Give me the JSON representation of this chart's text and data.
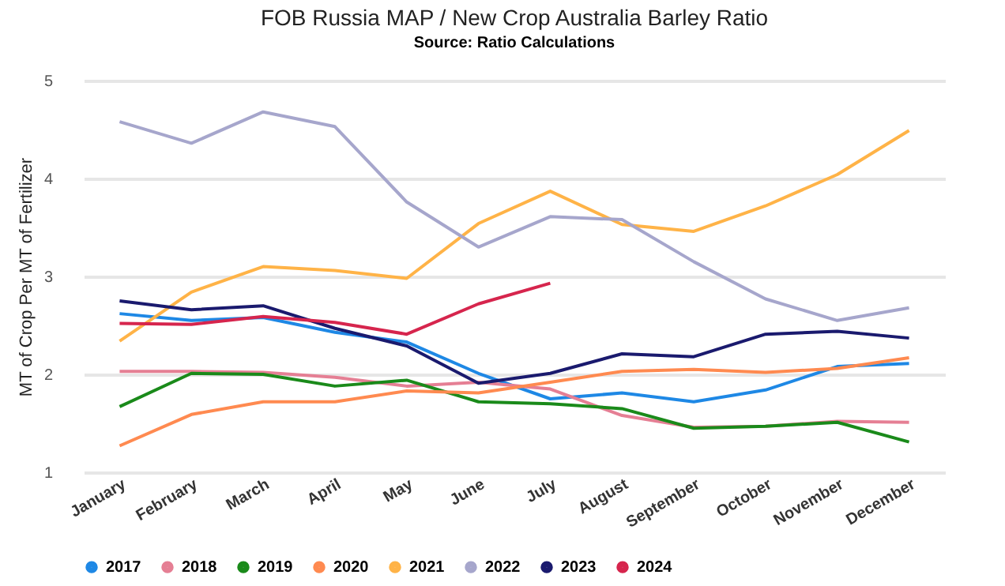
{
  "chart_data": {
    "type": "line",
    "title": "FOB Russia MAP / New Crop Australia Barley Ratio",
    "subtitle": "Source: Ratio Calculations",
    "ylabel": "MT of Crop Per MT of Fertilizer",
    "categories": [
      "January",
      "February",
      "March",
      "April",
      "May",
      "June",
      "July",
      "August",
      "September",
      "October",
      "November",
      "December"
    ],
    "ylim": [
      1,
      5
    ],
    "yticks": [
      1,
      2,
      3,
      4,
      5
    ],
    "grid": "y",
    "legend": "bottom",
    "marker": "none",
    "series": [
      {
        "name": "2017",
        "color": "#1e88e5",
        "values": [
          2.62,
          2.55,
          2.58,
          2.43,
          2.33,
          2.01,
          1.75,
          1.81,
          1.72,
          1.84,
          2.08,
          2.11
        ]
      },
      {
        "name": "2018",
        "color": "#e57f94",
        "values": [
          2.03,
          2.03,
          2.02,
          1.97,
          1.88,
          1.92,
          1.85,
          1.58,
          1.46,
          1.47,
          1.52,
          1.51
        ]
      },
      {
        "name": "2019",
        "color": "#1a8a1a",
        "values": [
          1.67,
          2.01,
          2.0,
          1.88,
          1.94,
          1.72,
          1.7,
          1.65,
          1.45,
          1.47,
          1.51,
          1.31
        ]
      },
      {
        "name": "2020",
        "color": "#ff8a50",
        "values": [
          1.27,
          1.59,
          1.72,
          1.72,
          1.83,
          1.81,
          1.92,
          2.03,
          2.05,
          2.02,
          2.06,
          2.17
        ]
      },
      {
        "name": "2021",
        "color": "#ffb347",
        "values": [
          2.34,
          2.84,
          3.1,
          3.06,
          2.98,
          3.54,
          3.87,
          3.53,
          3.46,
          3.72,
          4.04,
          4.49
        ]
      },
      {
        "name": "2022",
        "color": "#a6a6cc",
        "values": [
          4.58,
          4.36,
          4.68,
          4.53,
          3.76,
          3.3,
          3.61,
          3.58,
          3.15,
          2.77,
          2.55,
          2.68
        ]
      },
      {
        "name": "2023",
        "color": "#1a1a6e",
        "values": [
          2.75,
          2.66,
          2.7,
          2.47,
          2.29,
          1.91,
          2.01,
          2.21,
          2.18,
          2.41,
          2.44,
          2.37
        ]
      },
      {
        "name": "2024",
        "color": "#d6254d",
        "values": [
          2.52,
          2.51,
          2.59,
          2.53,
          2.41,
          2.72,
          2.93,
          null,
          null,
          null,
          null,
          null
        ]
      }
    ]
  }
}
